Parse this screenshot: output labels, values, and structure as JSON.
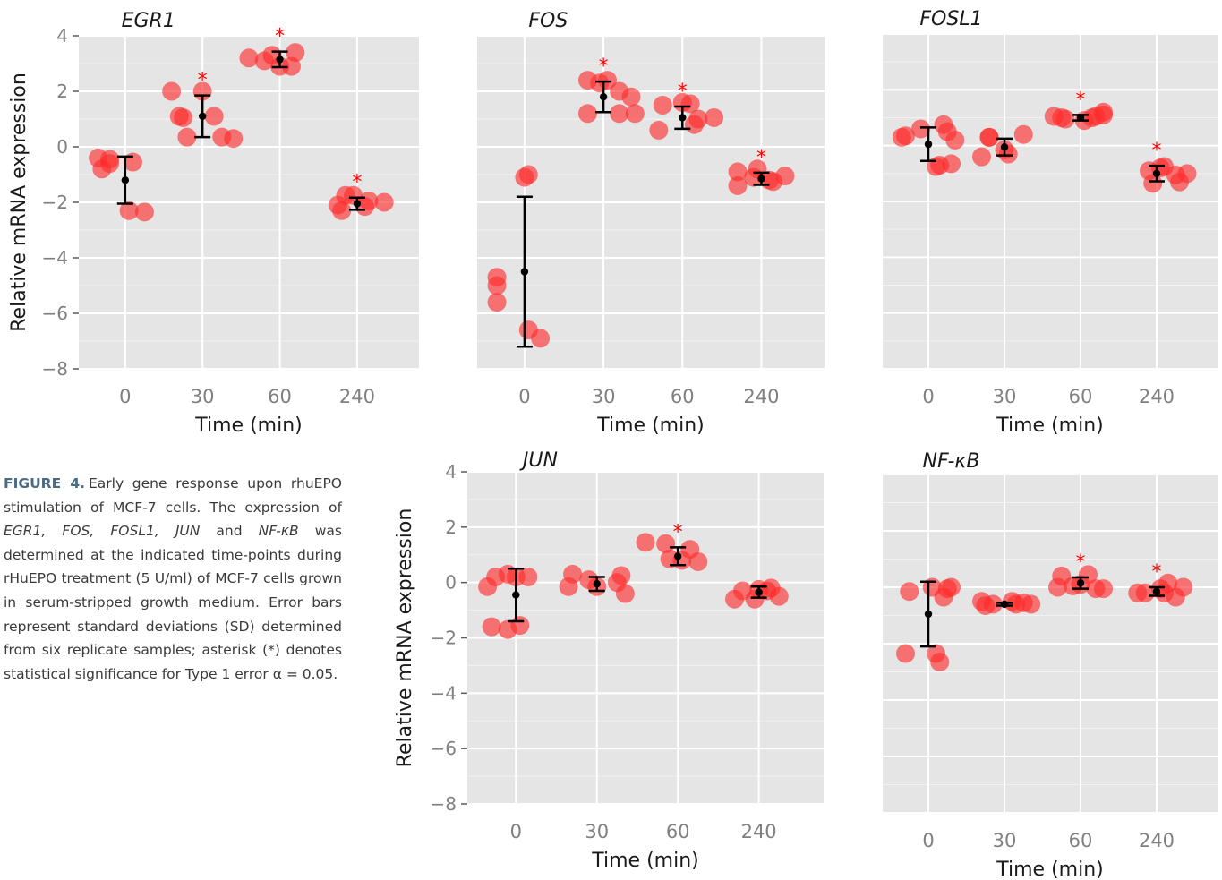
{
  "colors": {
    "panel_bg": "#e5e5e5",
    "grid": "#ffffff",
    "point": "#ff2a2a",
    "summary": "#000000",
    "asterisk": "#ff0000",
    "tick_text": "#808080",
    "axis_title": "#1a1a1a",
    "caption_label": "#4a6b85"
  },
  "caption": {
    "label": "FIGURE 4.",
    "parts": [
      {
        "t": "Early gene response upon rhuEPO stimulation of MCF-7 cells. The expression of ",
        "i": false
      },
      {
        "t": "EGR1, FOS, FOSL1, JUN",
        "i": true
      },
      {
        "t": " and ",
        "i": false
      },
      {
        "t": "NF-κB",
        "i": true
      },
      {
        "t": " was determined at the indicated time-points during rHuEPO treatment (5 U/ml) of MCF-7 cells grown in serum-stripped growth medium. Error bars represent standard deviations (SD) determined from six replicate samples; asterisk (*) denotes statistical significance for Type 1 error α = 0.05.",
        "i": false
      }
    ]
  },
  "chart_data": [
    {
      "type": "scatter",
      "title": "EGR1",
      "xlabel": "Time (min)",
      "ylabel": "Relative mRNA expression",
      "categories": [
        "0",
        "30",
        "60",
        "240"
      ],
      "ylim": [
        -8,
        4
      ],
      "yticks": [
        4,
        2,
        0,
        -2,
        -4,
        -6,
        -8
      ],
      "grid": true,
      "points": [
        [
          [
            -0.35,
            -0.4
          ],
          [
            -0.3,
            -0.8
          ],
          [
            -0.2,
            -0.45
          ],
          [
            -0.2,
            -0.6
          ],
          [
            0.1,
            -0.55
          ],
          [
            0.05,
            -2.3
          ],
          [
            0.25,
            -2.35
          ]
        ],
        [
          [
            -0.4,
            2.0
          ],
          [
            -0.3,
            1.1
          ],
          [
            -0.25,
            1.05
          ],
          [
            -0.2,
            0.35
          ],
          [
            0.0,
            2.0
          ],
          [
            0.15,
            1.1
          ],
          [
            0.25,
            0.35
          ],
          [
            0.4,
            0.3
          ]
        ],
        [
          [
            -0.4,
            3.2
          ],
          [
            -0.2,
            3.1
          ],
          [
            -0.1,
            3.3
          ],
          [
            0.0,
            2.9
          ],
          [
            0.15,
            2.9
          ],
          [
            0.2,
            3.4
          ]
        ],
        [
          [
            -0.25,
            -2.1
          ],
          [
            -0.2,
            -2.3
          ],
          [
            -0.15,
            -1.75
          ],
          [
            -0.05,
            -1.75
          ],
          [
            0.1,
            -2.15
          ],
          [
            0.15,
            -1.95
          ],
          [
            0.35,
            -2.0
          ]
        ]
      ],
      "mean": [
        -1.2,
        1.1,
        3.15,
        -2.05
      ],
      "sd": [
        0.85,
        0.75,
        0.28,
        0.22
      ],
      "significant": [
        false,
        true,
        true,
        true
      ]
    },
    {
      "type": "scatter",
      "title": "FOS",
      "xlabel": "Time (min)",
      "ylabel": "",
      "categories": [
        "0",
        "30",
        "60",
        "240"
      ],
      "ylim": [
        -8,
        4
      ],
      "yticks": [],
      "grid": true,
      "points": [
        [
          [
            -0.35,
            -4.7
          ],
          [
            -0.35,
            -5.0
          ],
          [
            -0.35,
            -5.6
          ],
          [
            0.0,
            -1.1
          ],
          [
            0.05,
            -1.0
          ],
          [
            0.05,
            -6.6
          ],
          [
            0.2,
            -6.9
          ]
        ],
        [
          [
            -0.2,
            1.2
          ],
          [
            -0.2,
            2.4
          ],
          [
            -0.05,
            2.3
          ],
          [
            0.05,
            2.4
          ],
          [
            0.2,
            2.0
          ],
          [
            0.2,
            1.2
          ],
          [
            0.35,
            1.8
          ],
          [
            0.4,
            1.2
          ]
        ],
        [
          [
            -0.3,
            0.6
          ],
          [
            -0.25,
            1.5
          ],
          [
            0.0,
            1.6
          ],
          [
            0.1,
            1.55
          ],
          [
            0.15,
            0.8
          ],
          [
            0.2,
            1.0
          ],
          [
            0.4,
            1.05
          ]
        ],
        [
          [
            -0.3,
            -1.4
          ],
          [
            -0.3,
            -0.9
          ],
          [
            -0.1,
            -1.1
          ],
          [
            -0.05,
            -0.8
          ],
          [
            0.1,
            -1.2
          ],
          [
            0.15,
            -1.25
          ],
          [
            0.3,
            -1.05
          ]
        ]
      ],
      "mean": [
        -4.5,
        1.8,
        1.05,
        -1.15
      ],
      "sd": [
        2.7,
        0.55,
        0.4,
        0.22
      ],
      "significant": [
        false,
        true,
        true,
        true
      ]
    },
    {
      "type": "scatter",
      "title": "FOSL1",
      "xlabel": "Time (min)",
      "ylabel": "",
      "categories": [
        "0",
        "30",
        "60",
        "240"
      ],
      "ylim": [
        -8,
        4
      ],
      "yticks": [],
      "grid": true,
      "points": [
        [
          [
            -0.35,
            0.3
          ],
          [
            -0.3,
            0.35
          ],
          [
            -0.1,
            0.6
          ],
          [
            0.1,
            -0.75
          ],
          [
            0.15,
            -0.7
          ],
          [
            0.2,
            0.75
          ],
          [
            0.25,
            0.5
          ],
          [
            0.3,
            -0.65
          ],
          [
            0.35,
            0.2
          ]
        ],
        [
          [
            -0.3,
            -0.4
          ],
          [
            -0.2,
            0.3
          ],
          [
            -0.2,
            0.3
          ],
          [
            0.0,
            -0.15
          ],
          [
            0.05,
            -0.3
          ],
          [
            0.25,
            0.4
          ]
        ],
        [
          [
            -0.35,
            1.05
          ],
          [
            -0.25,
            1.0
          ],
          [
            -0.2,
            0.95
          ],
          [
            0.05,
            0.9
          ],
          [
            0.15,
            1.0
          ],
          [
            0.2,
            1.05
          ],
          [
            0.3,
            1.1
          ],
          [
            0.3,
            1.2
          ]
        ],
        [
          [
            -0.1,
            -0.9
          ],
          [
            -0.05,
            -1.35
          ],
          [
            0.05,
            -0.8
          ],
          [
            0.1,
            -0.75
          ],
          [
            0.25,
            -1.05
          ],
          [
            0.3,
            -1.3
          ],
          [
            0.4,
            -1.0
          ]
        ]
      ],
      "mean": [
        0.05,
        -0.05,
        1.0,
        -1.0
      ],
      "sd": [
        0.6,
        0.3,
        0.1,
        0.28
      ],
      "significant": [
        false,
        false,
        true,
        true
      ]
    },
    {
      "type": "scatter",
      "title": "JUN",
      "xlabel": "Time (min)",
      "ylabel": "Relative mRNA expression",
      "categories": [
        "0",
        "30",
        "60",
        "240"
      ],
      "ylim": [
        -8,
        4
      ],
      "yticks": [
        4,
        2,
        0,
        -2,
        -4,
        -6,
        -8
      ],
      "grid": true,
      "points": [
        [
          [
            -0.35,
            -0.15
          ],
          [
            -0.3,
            -1.6
          ],
          [
            -0.25,
            0.2
          ],
          [
            -0.1,
            0.3
          ],
          [
            -0.1,
            -1.7
          ],
          [
            0.0,
            0.2
          ],
          [
            0.05,
            -1.55
          ],
          [
            0.15,
            0.2
          ]
        ],
        [
          [
            -0.35,
            -0.15
          ],
          [
            -0.3,
            0.3
          ],
          [
            -0.1,
            0.1
          ],
          [
            0.0,
            -0.15
          ],
          [
            0.25,
            0.0
          ],
          [
            0.3,
            0.25
          ],
          [
            0.35,
            -0.4
          ]
        ],
        [
          [
            -0.4,
            1.45
          ],
          [
            -0.15,
            1.4
          ],
          [
            -0.1,
            0.85
          ],
          [
            0.05,
            0.8
          ],
          [
            0.15,
            1.2
          ],
          [
            0.25,
            0.75
          ]
        ],
        [
          [
            -0.3,
            -0.6
          ],
          [
            -0.2,
            -0.3
          ],
          [
            -0.05,
            -0.6
          ],
          [
            0.0,
            -0.25
          ],
          [
            0.1,
            -0.3
          ],
          [
            0.15,
            -0.2
          ],
          [
            0.25,
            -0.5
          ]
        ]
      ],
      "mean": [
        -0.45,
        -0.05,
        0.95,
        -0.35
      ],
      "sd": [
        0.95,
        0.25,
        0.32,
        0.2
      ],
      "significant": [
        false,
        false,
        true,
        false
      ]
    },
    {
      "type": "scatter",
      "title": "NF-κB",
      "xlabel": "Time (min)",
      "ylabel": "",
      "categories": [
        "0",
        "30",
        "60",
        "240"
      ],
      "ylim": [
        -8,
        4
      ],
      "yticks": [],
      "grid": true,
      "points": [
        [
          [
            -0.3,
            -2.35
          ],
          [
            -0.25,
            -0.15
          ],
          [
            0.05,
            0.0
          ],
          [
            0.1,
            -2.35
          ],
          [
            0.15,
            -2.65
          ],
          [
            0.2,
            -0.35
          ],
          [
            0.25,
            -0.05
          ],
          [
            0.3,
            0.0
          ]
        ],
        [
          [
            -0.3,
            -0.5
          ],
          [
            -0.25,
            -0.65
          ],
          [
            -0.15,
            -0.6
          ],
          [
            0.1,
            -0.5
          ],
          [
            0.15,
            -0.6
          ],
          [
            0.25,
            -0.55
          ],
          [
            0.35,
            -0.6
          ]
        ],
        [
          [
            -0.3,
            0.0
          ],
          [
            -0.25,
            0.4
          ],
          [
            -0.1,
            0.05
          ],
          [
            0.0,
            0.1
          ],
          [
            0.1,
            0.45
          ],
          [
            0.2,
            -0.05
          ],
          [
            0.3,
            -0.05
          ]
        ],
        [
          [
            -0.25,
            -0.2
          ],
          [
            -0.15,
            -0.2
          ],
          [
            0.05,
            -0.05
          ],
          [
            0.1,
            -0.2
          ],
          [
            0.15,
            0.15
          ],
          [
            0.25,
            -0.35
          ],
          [
            0.35,
            0.0
          ]
        ]
      ],
      "mean": [
        -0.95,
        -0.6,
        0.15,
        -0.15
      ],
      "sd": [
        1.15,
        0.05,
        0.2,
        0.15
      ],
      "significant": [
        false,
        false,
        true,
        true
      ]
    }
  ]
}
